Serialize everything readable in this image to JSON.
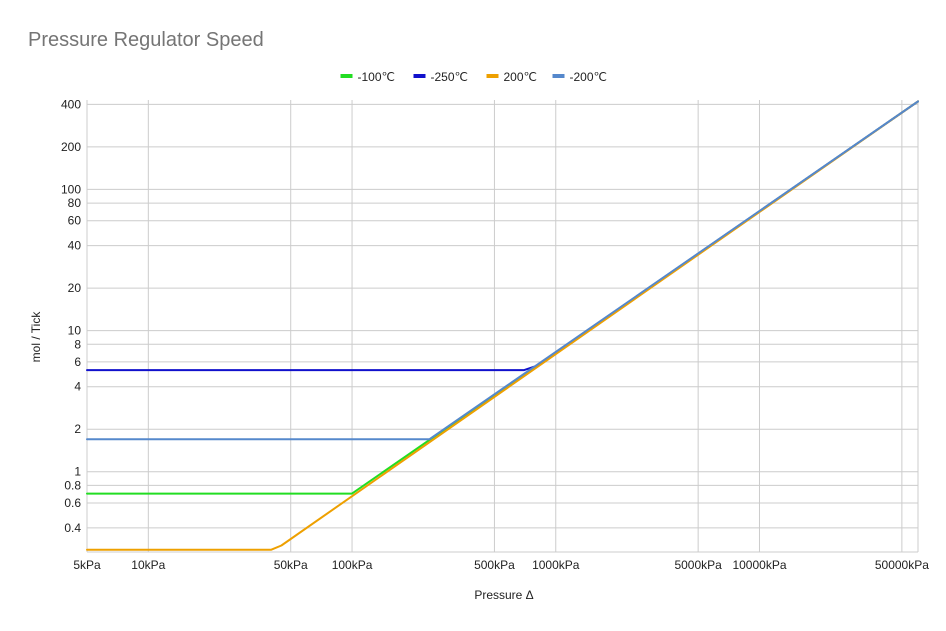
{
  "chart_data": {
    "type": "line",
    "title": "Pressure Regulator Speed",
    "xlabel": "Pressure Δ",
    "ylabel": "mol / Tick",
    "x_scale": "log",
    "y_scale": "log",
    "xlim": [
      5,
      60000
    ],
    "ylim": [
      0.27,
      430
    ],
    "x_unit": "kPa",
    "x_ticks": [
      {
        "value": 5,
        "label": "5kPa"
      },
      {
        "value": 10,
        "label": "10kPa"
      },
      {
        "value": 50,
        "label": "50kPa"
      },
      {
        "value": 100,
        "label": "100kPa"
      },
      {
        "value": 500,
        "label": "500kPa"
      },
      {
        "value": 1000,
        "label": "1000kPa"
      },
      {
        "value": 5000,
        "label": "5000kPa"
      },
      {
        "value": 10000,
        "label": "10000kPa"
      },
      {
        "value": 50000,
        "label": "50000kPa"
      }
    ],
    "y_ticks": [
      {
        "value": 0.4,
        "label": "0.4"
      },
      {
        "value": 0.6,
        "label": "0.6"
      },
      {
        "value": 0.8,
        "label": "0.8"
      },
      {
        "value": 1,
        "label": "1"
      },
      {
        "value": 2,
        "label": "2"
      },
      {
        "value": 4,
        "label": "4"
      },
      {
        "value": 6,
        "label": "6"
      },
      {
        "value": 8,
        "label": "8"
      },
      {
        "value": 10,
        "label": "10"
      },
      {
        "value": 20,
        "label": "20"
      },
      {
        "value": 40,
        "label": "40"
      },
      {
        "value": 60,
        "label": "60"
      },
      {
        "value": 80,
        "label": "80"
      },
      {
        "value": 100,
        "label": "100"
      },
      {
        "value": 200,
        "label": "200"
      },
      {
        "value": 400,
        "label": "400"
      }
    ],
    "grid": true,
    "legend_position": "top-center",
    "series": [
      {
        "name": "-100℃",
        "color": "#22dd22",
        "points": [
          [
            5,
            0.7
          ],
          [
            100,
            0.7
          ],
          [
            60000,
            420
          ]
        ]
      },
      {
        "name": "-250℃",
        "color": "#1111cc",
        "points": [
          [
            5,
            5.25
          ],
          [
            700,
            5.25
          ],
          [
            800,
            5.6
          ],
          [
            60000,
            420
          ]
        ]
      },
      {
        "name": "200℃",
        "color": "#eea000",
        "points": [
          [
            5,
            0.28
          ],
          [
            40,
            0.28
          ],
          [
            45,
            0.3
          ],
          [
            60000,
            420
          ]
        ]
      },
      {
        "name": "-200℃",
        "color": "#5588cc",
        "points": [
          [
            5,
            1.7
          ],
          [
            240,
            1.7
          ],
          [
            60000,
            420
          ]
        ]
      }
    ]
  }
}
